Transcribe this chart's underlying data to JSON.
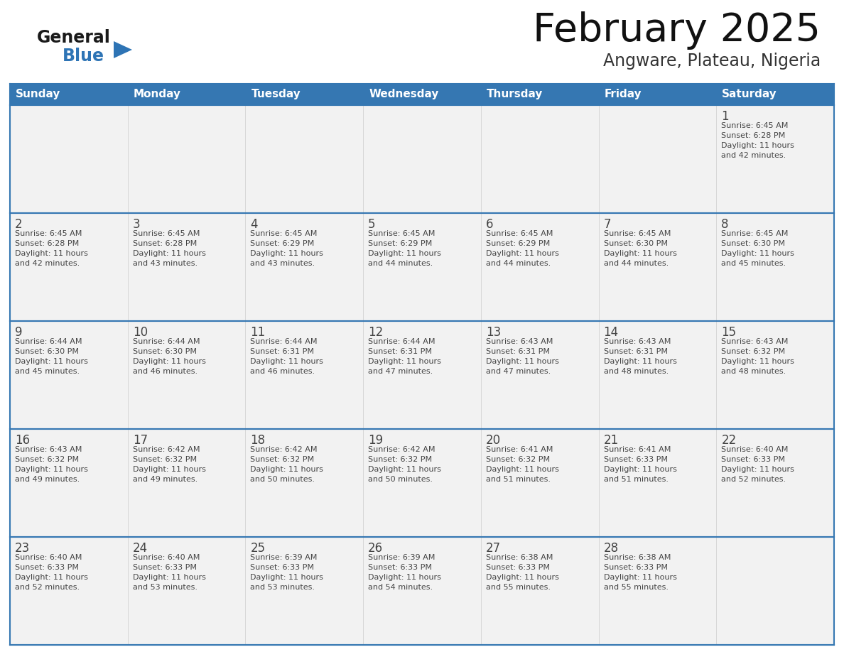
{
  "title": "February 2025",
  "subtitle": "Angware, Plateau, Nigeria",
  "days_of_week": [
    "Sunday",
    "Monday",
    "Tuesday",
    "Wednesday",
    "Thursday",
    "Friday",
    "Saturday"
  ],
  "header_bg": "#3577B2",
  "header_text_color": "#FFFFFF",
  "cell_bg": "#F2F2F2",
  "cell_text_color": "#444444",
  "day_num_color": "#444444",
  "border_color": "#3577B2",
  "row_line_color": "#3577B2",
  "logo_general_color": "#1a1a1a",
  "logo_blue_color": "#2E74B5",
  "title_color": "#111111",
  "subtitle_color": "#333333",
  "calendar_data": [
    [
      null,
      null,
      null,
      null,
      null,
      null,
      {
        "day": 1,
        "sunrise": "6:45 AM",
        "sunset": "6:28 PM",
        "daylight": "11 hours and 42 minutes."
      }
    ],
    [
      {
        "day": 2,
        "sunrise": "6:45 AM",
        "sunset": "6:28 PM",
        "daylight": "11 hours and 42 minutes."
      },
      {
        "day": 3,
        "sunrise": "6:45 AM",
        "sunset": "6:28 PM",
        "daylight": "11 hours and 43 minutes."
      },
      {
        "day": 4,
        "sunrise": "6:45 AM",
        "sunset": "6:29 PM",
        "daylight": "11 hours and 43 minutes."
      },
      {
        "day": 5,
        "sunrise": "6:45 AM",
        "sunset": "6:29 PM",
        "daylight": "11 hours and 44 minutes."
      },
      {
        "day": 6,
        "sunrise": "6:45 AM",
        "sunset": "6:29 PM",
        "daylight": "11 hours and 44 minutes."
      },
      {
        "day": 7,
        "sunrise": "6:45 AM",
        "sunset": "6:30 PM",
        "daylight": "11 hours and 44 minutes."
      },
      {
        "day": 8,
        "sunrise": "6:45 AM",
        "sunset": "6:30 PM",
        "daylight": "11 hours and 45 minutes."
      }
    ],
    [
      {
        "day": 9,
        "sunrise": "6:44 AM",
        "sunset": "6:30 PM",
        "daylight": "11 hours and 45 minutes."
      },
      {
        "day": 10,
        "sunrise": "6:44 AM",
        "sunset": "6:30 PM",
        "daylight": "11 hours and 46 minutes."
      },
      {
        "day": 11,
        "sunrise": "6:44 AM",
        "sunset": "6:31 PM",
        "daylight": "11 hours and 46 minutes."
      },
      {
        "day": 12,
        "sunrise": "6:44 AM",
        "sunset": "6:31 PM",
        "daylight": "11 hours and 47 minutes."
      },
      {
        "day": 13,
        "sunrise": "6:43 AM",
        "sunset": "6:31 PM",
        "daylight": "11 hours and 47 minutes."
      },
      {
        "day": 14,
        "sunrise": "6:43 AM",
        "sunset": "6:31 PM",
        "daylight": "11 hours and 48 minutes."
      },
      {
        "day": 15,
        "sunrise": "6:43 AM",
        "sunset": "6:32 PM",
        "daylight": "11 hours and 48 minutes."
      }
    ],
    [
      {
        "day": 16,
        "sunrise": "6:43 AM",
        "sunset": "6:32 PM",
        "daylight": "11 hours and 49 minutes."
      },
      {
        "day": 17,
        "sunrise": "6:42 AM",
        "sunset": "6:32 PM",
        "daylight": "11 hours and 49 minutes."
      },
      {
        "day": 18,
        "sunrise": "6:42 AM",
        "sunset": "6:32 PM",
        "daylight": "11 hours and 50 minutes."
      },
      {
        "day": 19,
        "sunrise": "6:42 AM",
        "sunset": "6:32 PM",
        "daylight": "11 hours and 50 minutes."
      },
      {
        "day": 20,
        "sunrise": "6:41 AM",
        "sunset": "6:32 PM",
        "daylight": "11 hours and 51 minutes."
      },
      {
        "day": 21,
        "sunrise": "6:41 AM",
        "sunset": "6:33 PM",
        "daylight": "11 hours and 51 minutes."
      },
      {
        "day": 22,
        "sunrise": "6:40 AM",
        "sunset": "6:33 PM",
        "daylight": "11 hours and 52 minutes."
      }
    ],
    [
      {
        "day": 23,
        "sunrise": "6:40 AM",
        "sunset": "6:33 PM",
        "daylight": "11 hours and 52 minutes."
      },
      {
        "day": 24,
        "sunrise": "6:40 AM",
        "sunset": "6:33 PM",
        "daylight": "11 hours and 53 minutes."
      },
      {
        "day": 25,
        "sunrise": "6:39 AM",
        "sunset": "6:33 PM",
        "daylight": "11 hours and 53 minutes."
      },
      {
        "day": 26,
        "sunrise": "6:39 AM",
        "sunset": "6:33 PM",
        "daylight": "11 hours and 54 minutes."
      },
      {
        "day": 27,
        "sunrise": "6:38 AM",
        "sunset": "6:33 PM",
        "daylight": "11 hours and 55 minutes."
      },
      {
        "day": 28,
        "sunrise": "6:38 AM",
        "sunset": "6:33 PM",
        "daylight": "11 hours and 55 minutes."
      },
      null
    ]
  ]
}
